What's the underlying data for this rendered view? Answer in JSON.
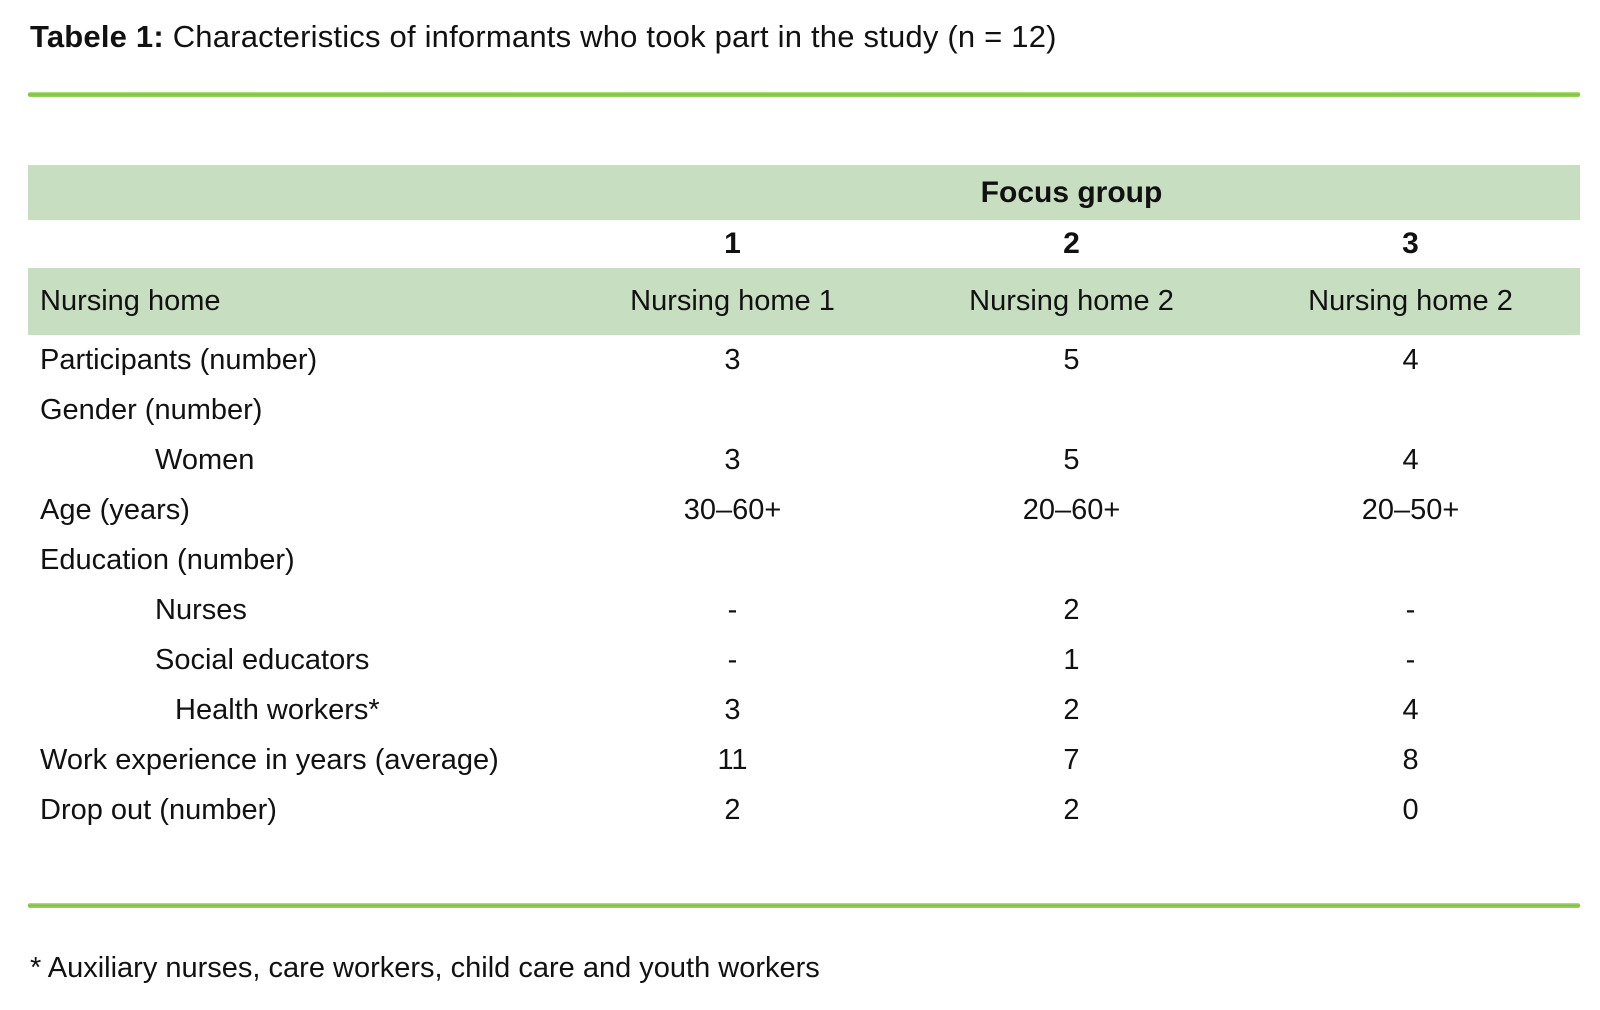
{
  "title": {
    "label": "Tabele 1:",
    "text": " Characteristics of informants who took part in the study (n = 12)"
  },
  "colors": {
    "band_green": "#c8dec0",
    "rule_green": "#7fc13d"
  },
  "table": {
    "group_header": "Focus group",
    "column_numbers": [
      "1",
      "2",
      "3"
    ],
    "nursing_home_row": {
      "label": "Nursing home",
      "values": [
        "Nursing home 1",
        "Nursing home 2",
        "Nursing home 2"
      ]
    },
    "rows": [
      {
        "label": "Participants (number)",
        "indent": 0,
        "values": [
          "3",
          "5",
          "4"
        ]
      },
      {
        "label": "Gender (number)",
        "indent": 0,
        "values": [
          "",
          "",
          ""
        ]
      },
      {
        "label": "Women",
        "indent": 1,
        "values": [
          "3",
          "5",
          "4"
        ]
      },
      {
        "label": "Age (years)",
        "indent": 0,
        "values": [
          "30–60+",
          "20–60+",
          "20–50+"
        ]
      },
      {
        "label": "Education (number)",
        "indent": 0,
        "values": [
          "",
          "",
          ""
        ]
      },
      {
        "label": "Nurses",
        "indent": 1,
        "values": [
          "-",
          "2",
          "-"
        ]
      },
      {
        "label": "Social educators",
        "indent": 1,
        "values": [
          "-",
          "1",
          "-"
        ]
      },
      {
        "label": "Health workers*",
        "indent": 2,
        "values": [
          "3",
          "2",
          "4"
        ]
      },
      {
        "label": "Work experience in years (average)",
        "indent": 0,
        "values": [
          "11",
          "7",
          "8"
        ]
      },
      {
        "label": "Drop out (number)",
        "indent": 0,
        "values": [
          "2",
          "2",
          "0"
        ]
      }
    ]
  },
  "footnote": "* Auxiliary nurses, care workers, child care and youth workers"
}
